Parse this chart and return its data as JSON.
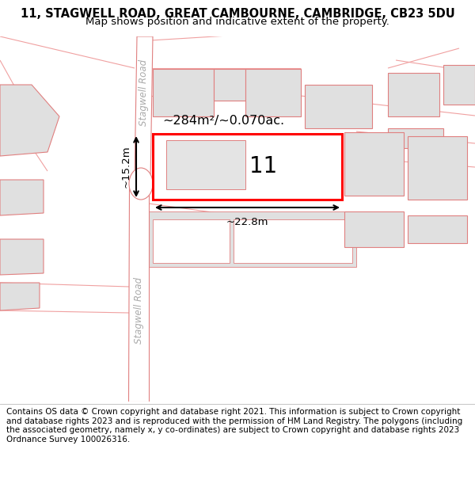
{
  "title_line1": "11, STAGWELL ROAD, GREAT CAMBOURNE, CAMBRIDGE, CB23 5DU",
  "title_line2": "Map shows position and indicative extent of the property.",
  "footer": "Contains OS data © Crown copyright and database right 2021. This information is subject to Crown copyright and database rights 2023 and is reproduced with the permission of HM Land Registry. The polygons (including the associated geometry, namely x, y co-ordinates) are subject to Crown copyright and database rights 2023 Ordnance Survey 100026316.",
  "map_bg": "#ffffff",
  "road_color": "#f5a0a0",
  "building_fill": "#e0e0e0",
  "building_edge": "#e08080",
  "highlight_fill": "#ffffff",
  "highlight_edge": "#ff0000",
  "highlight_lw": 2.2,
  "label_area": "~284m²/~0.070ac.",
  "label_number": "11",
  "label_width": "~22.8m",
  "label_height": "~15.2m",
  "road_label": "Stagwell Road",
  "title_fontsize": 10.5,
  "subtitle_fontsize": 9.5,
  "footer_fontsize": 7.5
}
